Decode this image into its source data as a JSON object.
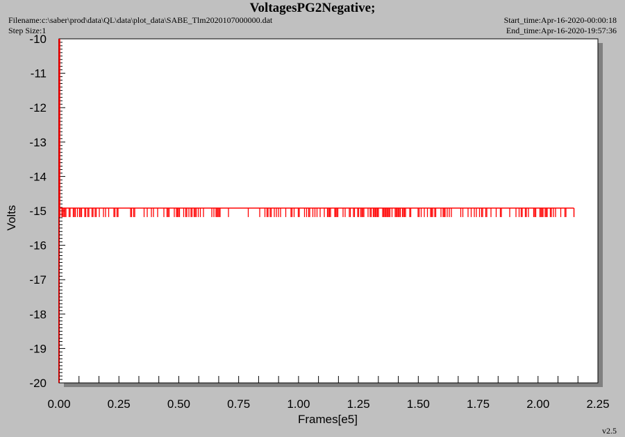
{
  "header": {
    "title": "VoltagesPG2Negative;",
    "filename": "Filename:c:\\saber\\prod\\data\\QL\\data\\plot_data\\SABE_Tlm2020107000000.dat",
    "step_size": "Step Size:1",
    "start_time": "Start_time:Apr-16-2020-00:00:18",
    "end_time": "End_time:Apr-16-2020-19:57:36"
  },
  "footer": {
    "version": "v2.5"
  },
  "colors": {
    "series": "#ff0000",
    "axis": "#cc0000",
    "background": "#c0c0c0",
    "plot": "#ffffff"
  },
  "chart_data": {
    "type": "line",
    "xlabel": "Frames[e5]",
    "ylabel": "Volts",
    "xlim": [
      0.0,
      2.25
    ],
    "ylim": [
      -20,
      -10
    ],
    "x_ticks": [
      "0.00",
      "0.25",
      "0.50",
      "0.75",
      "1.00",
      "1.25",
      "1.50",
      "1.75",
      "2.00",
      "2.25"
    ],
    "y_ticks": [
      "-10",
      "-11",
      "-12",
      "-13",
      "-14",
      "-15",
      "-16",
      "-17",
      "-18",
      "-19",
      "-20"
    ],
    "grid": false,
    "series": [
      {
        "x_range": [
          0.0,
          2.15
        ],
        "baseline": -14.92,
        "noise_low": -15.18,
        "spike_top": -10.0,
        "description_values": "Voltage holds near -14.9 V with frequent brief dips to about -15.2 V across frames 0 to 2.15e5; initial spike from -10 V at frame 0."
      }
    ]
  }
}
